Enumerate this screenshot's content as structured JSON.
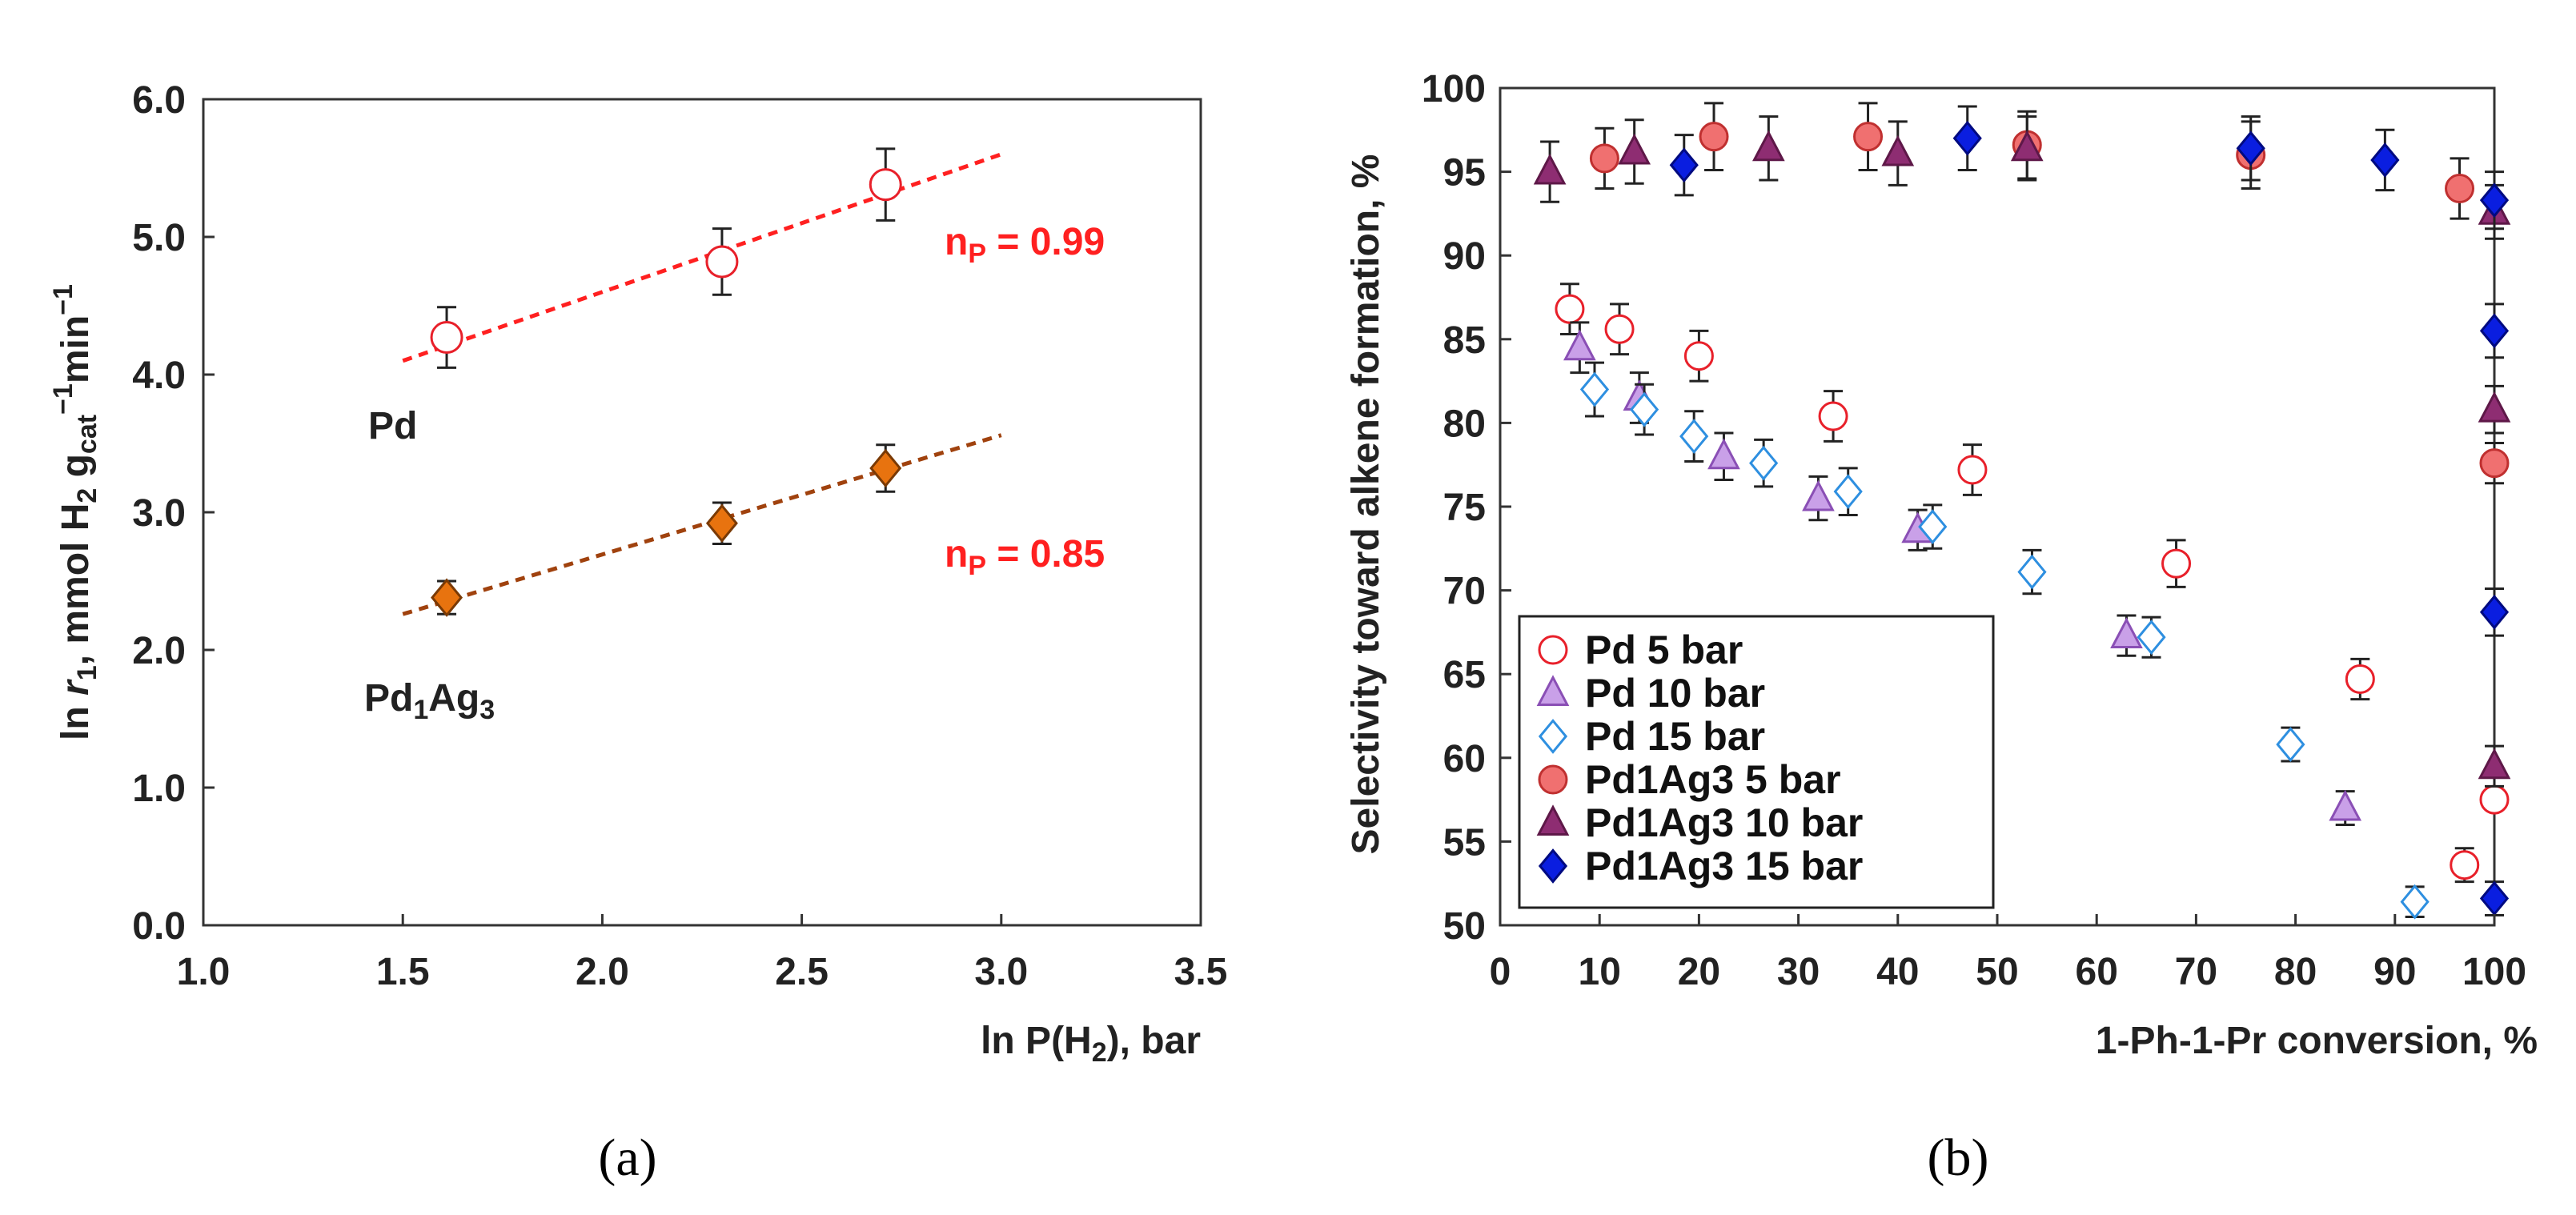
{
  "chart_data": [
    {
      "id": "a",
      "type": "scatter",
      "caption": "(a)",
      "xlabel": "ln P(H",
      "xlabel_sub": "2",
      "xlabel_end": "), bar",
      "ylabel_parts": [
        "ln ",
        "r",
        "1",
        ", mmol H",
        "2",
        " g",
        "cat",
        "−1",
        "min",
        "−1"
      ],
      "xlim": [
        1.0,
        3.5
      ],
      "ylim": [
        0.0,
        6.0
      ],
      "xticks": [
        "1.0",
        "1.5",
        "2.0",
        "2.5",
        "3.0",
        "3.5"
      ],
      "yticks": [
        "0.0",
        "1.0",
        "2.0",
        "3.0",
        "4.0",
        "5.0",
        "6.0"
      ],
      "series": [
        {
          "name": "Pd",
          "marker": "circle",
          "fill": "#ffffff",
          "stroke": "#e8202a",
          "x": [
            1.61,
            2.3,
            2.71
          ],
          "y": [
            4.27,
            4.82,
            5.38
          ],
          "err": [
            0.22,
            0.24,
            0.26
          ],
          "fit": {
            "x": [
              1.5,
              3.0
            ],
            "y": [
              4.1,
              5.6
            ],
            "color": "#ff2020"
          }
        },
        {
          "name": "Pd1Ag3",
          "marker": "diamond",
          "fill": "#e8730f",
          "stroke": "#7a3a05",
          "x": [
            1.61,
            2.3,
            2.71
          ],
          "y": [
            2.38,
            2.92,
            3.32
          ],
          "err": [
            0.12,
            0.15,
            0.17
          ],
          "fit": {
            "x": [
              1.5,
              3.0
            ],
            "y": [
              2.26,
              3.56
            ],
            "color": "#a0420e"
          }
        }
      ],
      "labels": {
        "pd": "Pd",
        "pdag_main": "Pd",
        "pdag_sub1": "1",
        "pdag_ag": "Ag",
        "pdag_sub3": "3",
        "np1_pre": "n",
        "np1_sub": "P",
        "np1_val": " = 0.99",
        "np2_pre": "n",
        "np2_sub": "P",
        "np2_val": " = 0.85"
      }
    },
    {
      "id": "b",
      "type": "scatter",
      "caption": "(b)",
      "xlabel": "1-Ph-1-Pr conversion, %",
      "ylabel": "Selectivity toward alkene formation, %",
      "xlim": [
        0,
        100
      ],
      "ylim": [
        50,
        100
      ],
      "xticks": [
        "0",
        "10",
        "20",
        "30",
        "40",
        "50",
        "60",
        "70",
        "80",
        "90",
        "100"
      ],
      "yticks": [
        "50",
        "55",
        "60",
        "65",
        "70",
        "75",
        "80",
        "85",
        "90",
        "95",
        "100"
      ],
      "series": [
        {
          "name": "Pd 5 bar",
          "marker": "circle",
          "fill": "#ffffff",
          "stroke": "#e8202a",
          "x": [
            7,
            12,
            20,
            33.5,
            47.5,
            68,
            86.5,
            97,
            100
          ],
          "y": [
            86.8,
            85.6,
            84.0,
            80.4,
            77.2,
            71.6,
            64.7,
            53.6,
            57.5
          ],
          "err": [
            1.5,
            1.5,
            1.5,
            1.5,
            1.5,
            1.4,
            1.2,
            1.0,
            0
          ]
        },
        {
          "name": "Pd 10 bar",
          "marker": "triangle",
          "fill": "#c9a0e8",
          "stroke": "#8a4fb5",
          "x": [
            8,
            14,
            22.5,
            32,
            42,
            63,
            85
          ],
          "y": [
            84.5,
            81.5,
            78.0,
            75.5,
            73.6,
            67.3,
            57.0
          ],
          "err": [
            1.5,
            1.5,
            1.4,
            1.3,
            1.2,
            1.2,
            1.0
          ]
        },
        {
          "name": "Pd 15 bar",
          "marker": "diamond",
          "fill": "#ffffff",
          "stroke": "#2e8fe0",
          "x": [
            9.5,
            14.5,
            19.5,
            26.5,
            35,
            43.5,
            53.5,
            65.5,
            79.5,
            92
          ],
          "y": [
            82.0,
            80.8,
            79.2,
            77.6,
            75.9,
            73.8,
            71.1,
            67.2,
            60.8,
            51.4
          ],
          "err": [
            1.6,
            1.5,
            1.5,
            1.4,
            1.4,
            1.3,
            1.3,
            1.2,
            1.0,
            0.9
          ]
        },
        {
          "name": "Pd1Ag3 5 bar",
          "marker": "circle",
          "fill": "#f07070",
          "stroke": "#c03030",
          "x": [
            10.5,
            21.5,
            37,
            53,
            75.5,
            96.5,
            100
          ],
          "y": [
            95.8,
            97.1,
            97.1,
            96.6,
            96.0,
            94.0,
            77.6
          ],
          "err": [
            1.8,
            2.0,
            2.0,
            2.0,
            2.0,
            1.8,
            1.2
          ]
        },
        {
          "name": "Pd1Ag3 10 bar",
          "marker": "triangle",
          "fill": "#8e2d72",
          "stroke": "#5e1848",
          "x": [
            5,
            13.5,
            27,
            40,
            53,
            100,
            100,
            100
          ],
          "y": [
            95.0,
            96.2,
            96.4,
            96.1,
            96.4,
            92.6,
            80.8,
            59.5
          ],
          "err": [
            1.8,
            1.9,
            1.9,
            1.9,
            1.9,
            1.6,
            1.4,
            1.2
          ]
        },
        {
          "name": "Pd1Ag3 15 bar",
          "marker": "diamond",
          "fill": "#0a1ee0",
          "stroke": "#000a80",
          "x": [
            18.5,
            47,
            75.5,
            89,
            100,
            100,
            100,
            100
          ],
          "y": [
            95.4,
            97.0,
            96.4,
            95.7,
            93.3,
            85.5,
            68.7,
            51.6
          ],
          "err": [
            1.8,
            1.9,
            1.9,
            1.8,
            1.7,
            1.6,
            1.4,
            1.0
          ]
        }
      ],
      "legend_position": "center-left"
    }
  ]
}
